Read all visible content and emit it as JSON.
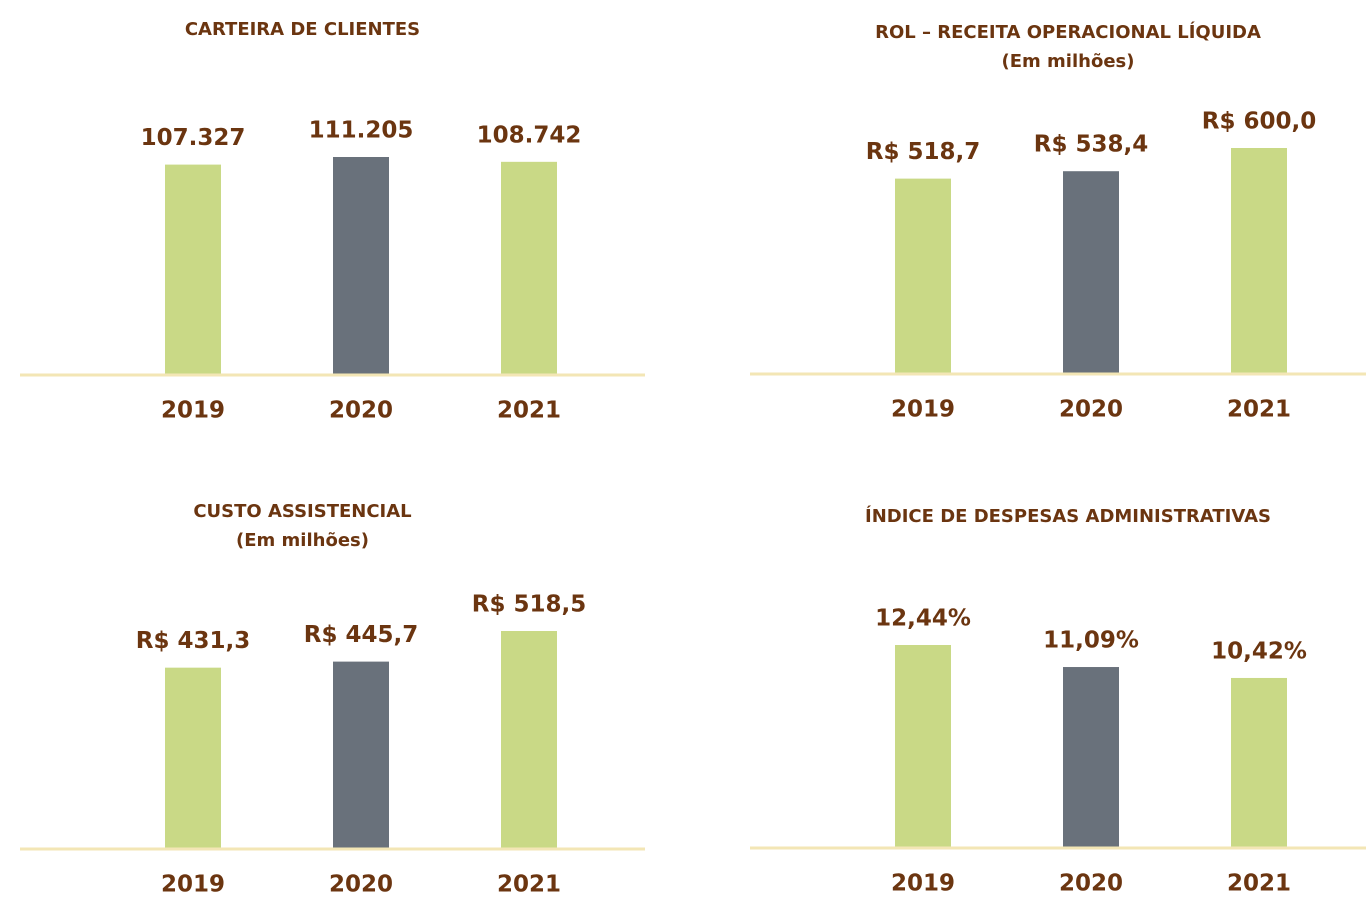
{
  "chart_data": [
    {
      "type": "bar",
      "title": "CARTEIRA DE CLIENTES",
      "categories": [
        "2019",
        "2020",
        "2021"
      ],
      "values": [
        107327,
        111205,
        108742
      ],
      "value_labels": [
        "107.327",
        "111.205",
        "108.742"
      ],
      "colors": [
        "#c9d986",
        "#69717b",
        "#c9d986"
      ]
    },
    {
      "type": "bar",
      "title": "ROL – RECEITA OPERACIONAL LÍQUIDA",
      "subtitle": "(Em milhões)",
      "categories": [
        "2019",
        "2020",
        "2021"
      ],
      "values": [
        518.7,
        538.4,
        600.0
      ],
      "value_labels": [
        "R$ 518,7",
        "R$ 538,4",
        "R$ 600,0"
      ],
      "colors": [
        "#c9d986",
        "#69717b",
        "#c9d986"
      ]
    },
    {
      "type": "bar",
      "title": "CUSTO ASSISTENCIAL",
      "subtitle": "(Em milhões)",
      "categories": [
        "2019",
        "2020",
        "2021"
      ],
      "values": [
        431.3,
        445.7,
        518.5
      ],
      "value_labels": [
        "R$ 431,3",
        "R$ 445,7",
        "R$ 518,5"
      ],
      "colors": [
        "#c9d986",
        "#69717b",
        "#c9d986"
      ]
    },
    {
      "type": "bar",
      "title": "ÍNDICE DE DESPESAS ADMINISTRATIVAS",
      "categories": [
        "2019",
        "2020",
        "2021"
      ],
      "values": [
        12.44,
        11.09,
        10.42
      ],
      "value_labels": [
        "12,44%",
        "11,09%",
        "10,42%"
      ],
      "colors": [
        "#c9d986",
        "#69717b",
        "#c9d986"
      ]
    }
  ]
}
